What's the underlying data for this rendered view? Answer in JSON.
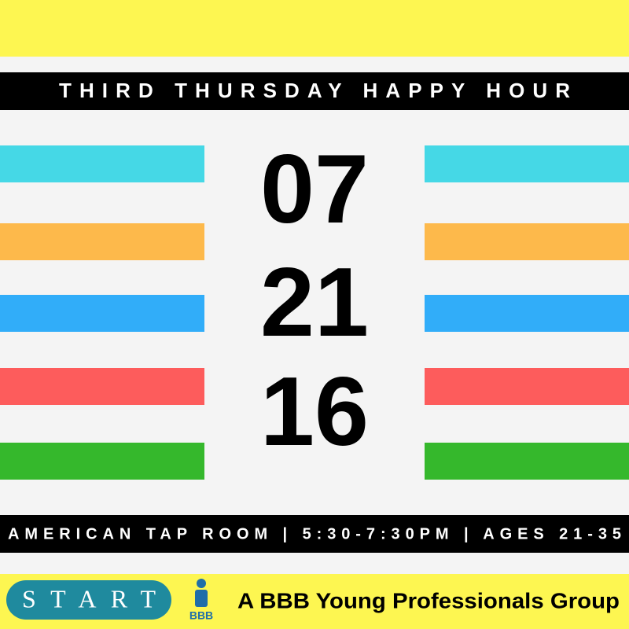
{
  "header": {
    "title": "THIRD THURSDAY HAPPY HOUR"
  },
  "date": {
    "month": "07",
    "day": "21",
    "year": "16"
  },
  "details": "AMERICAN TAP ROOM | 5:30-7:30PM | AGES 21-35",
  "footer": {
    "logo": "START",
    "bbb_logo": "BBB",
    "tagline": "A BBB Young Professionals Group"
  }
}
